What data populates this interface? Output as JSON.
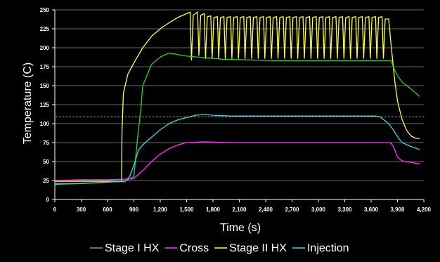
{
  "chart_data": {
    "type": "line",
    "title": "",
    "xlabel": "Time (s)",
    "ylabel": "Temperature (C)",
    "xlim": [
      0,
      4200
    ],
    "ylim": [
      0,
      250
    ],
    "x_ticks": [
      0,
      300,
      600,
      900,
      1200,
      1500,
      1800,
      2100,
      2400,
      2700,
      3000,
      3300,
      3600,
      3900,
      4200
    ],
    "x_tick_labels": [
      "0",
      "300",
      "600",
      "900",
      "1,200",
      "1,500",
      "1,800",
      "2,100",
      "2,400",
      "2,700",
      "3,000",
      "3,300",
      "3,600",
      "3,900",
      "4,200"
    ],
    "y_ticks": [
      0,
      25,
      50,
      75,
      100,
      125,
      150,
      175,
      200,
      225,
      250
    ],
    "y_tick_labels": [
      "0",
      "25",
      "50",
      "75",
      "100",
      "125",
      "150",
      "175",
      "200",
      "225",
      "250"
    ],
    "grid": "horizontal",
    "reference_line": 109,
    "legend_position": "bottom",
    "series": [
      {
        "name": "Stage I HX",
        "color": "#33cc33",
        "points": [
          [
            0,
            21
          ],
          [
            300,
            21
          ],
          [
            600,
            23
          ],
          [
            800,
            24
          ],
          [
            900,
            30
          ],
          [
            940,
            80
          ],
          [
            980,
            120
          ],
          [
            1000,
            150
          ],
          [
            1100,
            178
          ],
          [
            1200,
            188
          ],
          [
            1300,
            193
          ],
          [
            1400,
            191
          ],
          [
            1500,
            189
          ],
          [
            1700,
            187
          ],
          [
            1900,
            185
          ],
          [
            2200,
            184
          ],
          [
            2500,
            183
          ],
          [
            2800,
            183
          ],
          [
            3100,
            183
          ],
          [
            3400,
            183
          ],
          [
            3700,
            183
          ],
          [
            3830,
            183
          ],
          [
            3850,
            175
          ],
          [
            3900,
            163
          ],
          [
            3960,
            154
          ],
          [
            4050,
            146
          ],
          [
            4120,
            139
          ],
          [
            4150,
            136
          ]
        ]
      },
      {
        "name": "Cross",
        "color": "#ff33ff",
        "points": [
          [
            0,
            25
          ],
          [
            300,
            26
          ],
          [
            600,
            26
          ],
          [
            850,
            27
          ],
          [
            900,
            28
          ],
          [
            1000,
            38
          ],
          [
            1100,
            50
          ],
          [
            1200,
            60
          ],
          [
            1300,
            67
          ],
          [
            1400,
            72
          ],
          [
            1500,
            75
          ],
          [
            1700,
            76
          ],
          [
            2000,
            75
          ],
          [
            2500,
            75
          ],
          [
            3000,
            75
          ],
          [
            3500,
            75
          ],
          [
            3800,
            75
          ],
          [
            3830,
            74
          ],
          [
            3860,
            68
          ],
          [
            3900,
            56
          ],
          [
            3950,
            51
          ],
          [
            4050,
            49
          ],
          [
            4150,
            47
          ]
        ]
      },
      {
        "name": "Stage II HX",
        "color": "#ffff44",
        "points": [
          [
            0,
            24
          ],
          [
            300,
            24
          ],
          [
            600,
            24
          ],
          [
            760,
            24
          ],
          [
            765,
            90
          ],
          [
            780,
            140
          ],
          [
            830,
            165
          ],
          [
            900,
            180
          ],
          [
            1000,
            200
          ],
          [
            1100,
            215
          ],
          [
            1200,
            225
          ],
          [
            1300,
            233
          ],
          [
            1400,
            240
          ],
          [
            1500,
            245
          ],
          [
            1540,
            247
          ],
          [
            1555,
            184
          ],
          [
            1575,
            243
          ],
          [
            1625,
            247
          ],
          [
            1640,
            190
          ],
          [
            1660,
            243
          ],
          [
            1700,
            245
          ],
          [
            1715,
            186
          ],
          [
            1735,
            241
          ],
          [
            1775,
            242
          ],
          [
            1790,
            186
          ],
          [
            1810,
            240
          ],
          [
            1850,
            241
          ],
          [
            1865,
            186
          ],
          [
            1885,
            240
          ],
          [
            1925,
            241
          ],
          [
            1940,
            186
          ],
          [
            1960,
            240
          ],
          [
            2000,
            241
          ],
          [
            2015,
            186
          ],
          [
            2035,
            240
          ],
          [
            2075,
            241
          ],
          [
            2090,
            186
          ],
          [
            2110,
            240
          ],
          [
            2150,
            241
          ],
          [
            2165,
            186
          ],
          [
            2185,
            240
          ],
          [
            2225,
            241
          ],
          [
            2240,
            186
          ],
          [
            2260,
            240
          ],
          [
            2300,
            241
          ],
          [
            2315,
            186
          ],
          [
            2335,
            240
          ],
          [
            2375,
            241
          ],
          [
            2390,
            186
          ],
          [
            2410,
            240
          ],
          [
            2450,
            241
          ],
          [
            2465,
            186
          ],
          [
            2485,
            240
          ],
          [
            2525,
            241
          ],
          [
            2540,
            186
          ],
          [
            2560,
            240
          ],
          [
            2600,
            241
          ],
          [
            2615,
            186
          ],
          [
            2635,
            240
          ],
          [
            2675,
            241
          ],
          [
            2690,
            186
          ],
          [
            2710,
            240
          ],
          [
            2750,
            241
          ],
          [
            2765,
            186
          ],
          [
            2785,
            240
          ],
          [
            2825,
            241
          ],
          [
            2840,
            186
          ],
          [
            2860,
            240
          ],
          [
            2900,
            241
          ],
          [
            2915,
            186
          ],
          [
            2935,
            240
          ],
          [
            2975,
            241
          ],
          [
            2990,
            186
          ],
          [
            3010,
            240
          ],
          [
            3050,
            241
          ],
          [
            3065,
            186
          ],
          [
            3085,
            240
          ],
          [
            3125,
            241
          ],
          [
            3140,
            186
          ],
          [
            3160,
            240
          ],
          [
            3200,
            241
          ],
          [
            3215,
            186
          ],
          [
            3235,
            240
          ],
          [
            3275,
            241
          ],
          [
            3290,
            186
          ],
          [
            3310,
            240
          ],
          [
            3350,
            241
          ],
          [
            3365,
            186
          ],
          [
            3385,
            240
          ],
          [
            3425,
            241
          ],
          [
            3440,
            186
          ],
          [
            3460,
            240
          ],
          [
            3500,
            241
          ],
          [
            3515,
            186
          ],
          [
            3535,
            240
          ],
          [
            3575,
            241
          ],
          [
            3590,
            186
          ],
          [
            3610,
            240
          ],
          [
            3650,
            241
          ],
          [
            3665,
            186
          ],
          [
            3685,
            240
          ],
          [
            3725,
            241
          ],
          [
            3740,
            186
          ],
          [
            3760,
            238
          ],
          [
            3800,
            238
          ],
          [
            3830,
            200
          ],
          [
            3870,
            155
          ],
          [
            3900,
            130
          ],
          [
            3950,
            106
          ],
          [
            4000,
            92
          ],
          [
            4050,
            84
          ],
          [
            4100,
            81
          ],
          [
            4150,
            80
          ]
        ]
      },
      {
        "name": "Injection",
        "color": "#33dddd",
        "points": [
          [
            0,
            20
          ],
          [
            300,
            21
          ],
          [
            600,
            23
          ],
          [
            800,
            24
          ],
          [
            850,
            30
          ],
          [
            900,
            45
          ],
          [
            950,
            65
          ],
          [
            1000,
            72
          ],
          [
            1100,
            82
          ],
          [
            1200,
            92
          ],
          [
            1300,
            100
          ],
          [
            1400,
            105
          ],
          [
            1500,
            108
          ],
          [
            1600,
            111
          ],
          [
            1700,
            112
          ],
          [
            1800,
            111
          ],
          [
            2000,
            110
          ],
          [
            2300,
            110
          ],
          [
            2600,
            110
          ],
          [
            2900,
            110
          ],
          [
            3200,
            110
          ],
          [
            3500,
            110
          ],
          [
            3650,
            110
          ],
          [
            3700,
            109
          ],
          [
            3800,
            100
          ],
          [
            3850,
            92
          ],
          [
            3900,
            83
          ],
          [
            3950,
            75
          ],
          [
            4050,
            70
          ],
          [
            4150,
            66
          ]
        ]
      }
    ]
  }
}
